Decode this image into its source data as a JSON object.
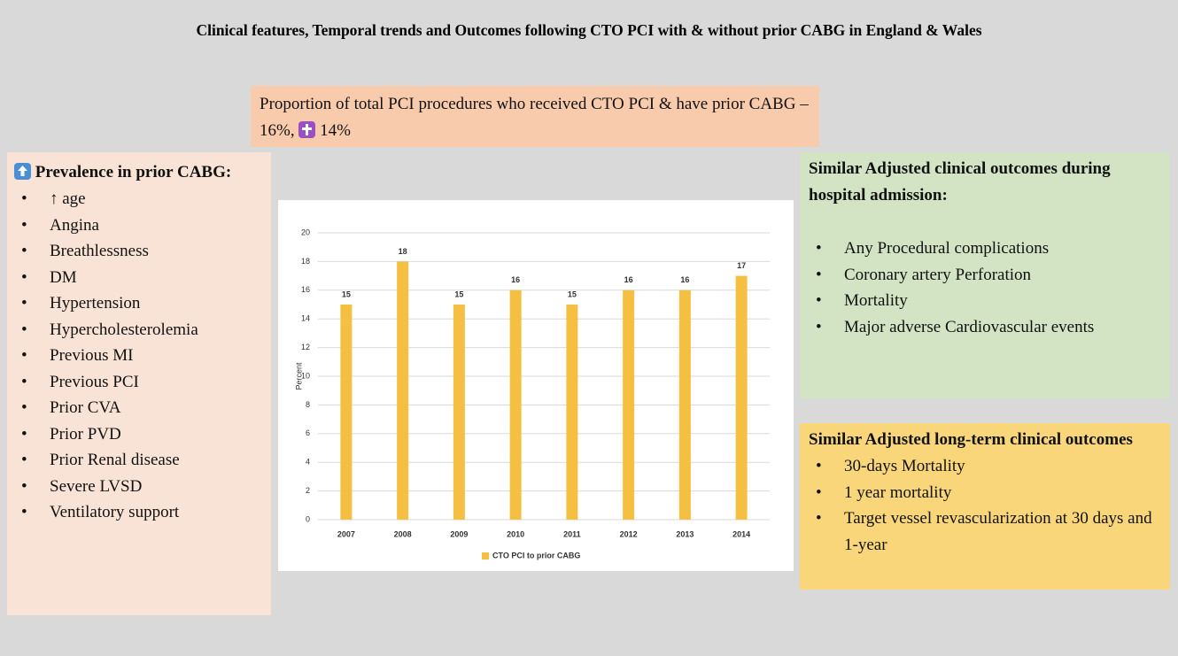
{
  "title": "Clinical features, Temporal trends and Outcomes following CTO PCI with & without prior CABG in England & Wales",
  "banner": {
    "text": "Proportion  of total PCI procedures who received  CTO PCI & have prior CABG – 16%,",
    "text_after_icon": "14%"
  },
  "prevalence": {
    "heading": "Prevalence in prior CABG:",
    "items": [
      "↑ age",
      "Angina",
      "Breathlessness",
      "DM",
      "Hypertension",
      "Hypercholesterolemia",
      "Previous MI",
      "Previous PCI",
      "Prior CVA",
      "Prior PVD",
      "Prior Renal disease",
      "Severe LVSD",
      "Ventilatory support"
    ]
  },
  "in_hospital": {
    "heading": "Similar Adjusted clinical outcomes during hospital admission:",
    "items": [
      "Any Procedural complications",
      "Coronary artery Perforation",
      "Mortality",
      "Major adverse Cardiovascular events"
    ]
  },
  "long_term": {
    "heading": "Similar Adjusted long-term clinical outcomes",
    "items": [
      "30-days Mortality",
      "1 year mortality",
      "Target vessel revascularization at 30 days and 1-year"
    ]
  },
  "chart_data": {
    "type": "bar",
    "y_label": "Percent",
    "categories": [
      "2007",
      "2008",
      "2009",
      "2010",
      "2011",
      "2012",
      "2013",
      "2014"
    ],
    "series": [
      {
        "name": "CTO PCI to prior CABG",
        "color": "#f5bf42",
        "values": [
          15,
          18,
          15,
          16,
          15,
          16,
          16,
          17
        ]
      }
    ],
    "ylim": [
      0,
      20
    ],
    "yticks": [
      0,
      2,
      4,
      6,
      8,
      10,
      12,
      14,
      16,
      18,
      20
    ],
    "grid": true,
    "legend": "bottom"
  }
}
